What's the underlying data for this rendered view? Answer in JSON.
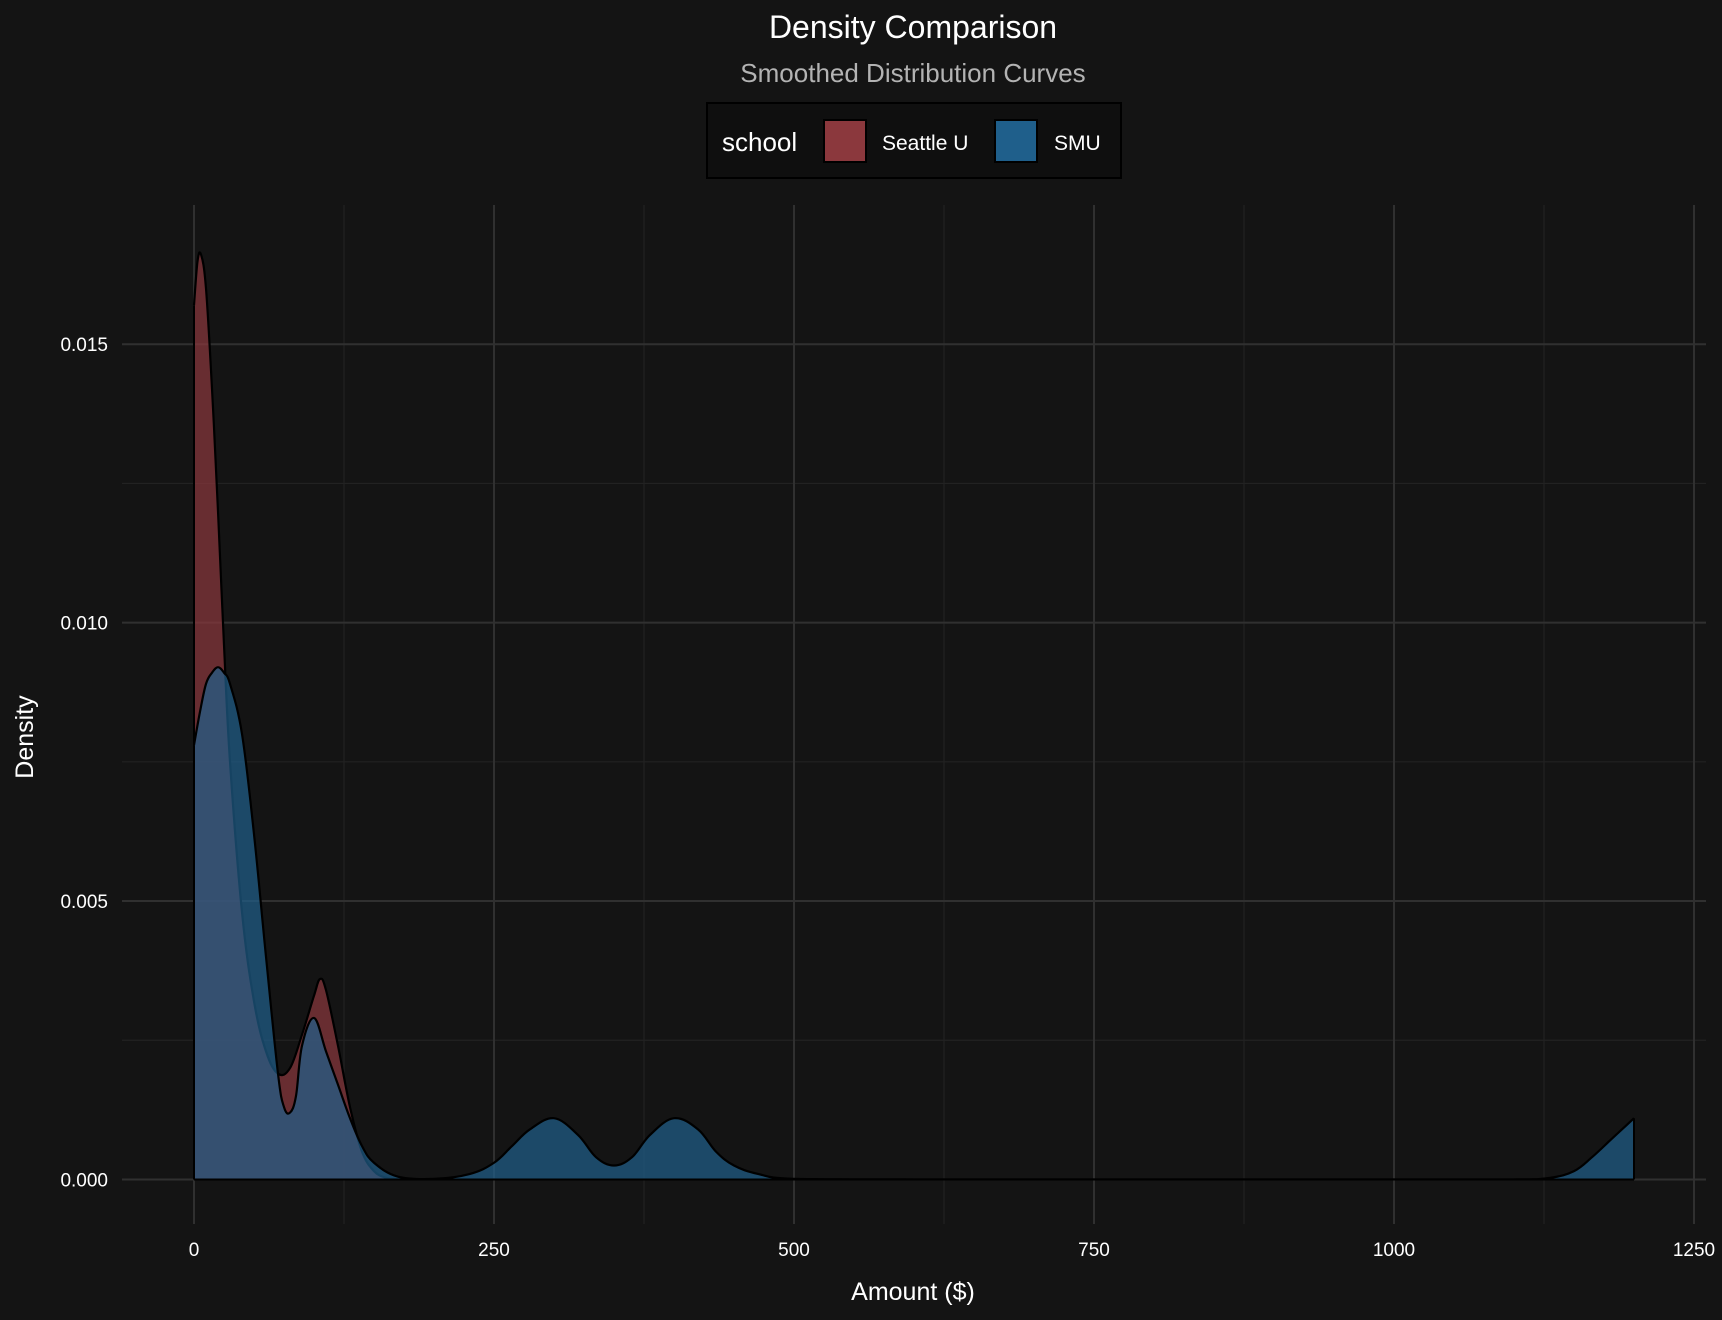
{
  "chart_data": {
    "type": "area",
    "title": "Density Comparison",
    "subtitle": "Smoothed Distribution Curves",
    "xlabel": "Amount ($)",
    "ylabel": "Density",
    "xlim": [
      -60,
      1260
    ],
    "ylim": [
      -0.0008,
      0.0175
    ],
    "x_ticks": [
      0,
      250,
      500,
      750,
      1000,
      1250
    ],
    "x_tick_labels": [
      "0",
      "250",
      "500",
      "750",
      "1000",
      "1250"
    ],
    "y_ticks": [
      0.0,
      0.005,
      0.01,
      0.015
    ],
    "y_tick_labels": [
      "0.000",
      "0.005",
      "0.010",
      "0.015"
    ],
    "grid": true,
    "legend": {
      "title": "school",
      "position": "top",
      "entries": [
        {
          "label": "Seattle U",
          "color": "#8b383d"
        },
        {
          "label": "SMU",
          "color": "#1f5f8b"
        }
      ]
    },
    "series": [
      {
        "name": "Seattle U",
        "color": "#8b383d",
        "x": [
          0,
          3,
          6,
          10,
          15,
          20,
          25,
          30,
          40,
          50,
          60,
          70,
          80,
          90,
          100,
          105,
          110,
          120,
          130,
          140,
          150,
          160,
          170,
          180,
          200,
          230,
          260,
          300,
          350,
          400,
          450,
          500,
          600,
          700,
          800,
          900,
          1000,
          1100,
          1200
        ],
        "y": [
          0.0157,
          0.0165,
          0.0166,
          0.016,
          0.0142,
          0.012,
          0.0096,
          0.0075,
          0.0048,
          0.0032,
          0.0023,
          0.0019,
          0.002,
          0.0026,
          0.0033,
          0.0036,
          0.0034,
          0.0024,
          0.0013,
          0.0005,
          0.00015,
          3e-05,
          1e-05,
          0,
          0,
          0,
          0,
          0,
          0,
          0,
          0,
          0,
          0,
          0,
          0,
          0,
          0,
          0,
          0
        ]
      },
      {
        "name": "SMU",
        "color": "#1f5f8b",
        "x": [
          0,
          5,
          10,
          15,
          20,
          25,
          30,
          40,
          50,
          60,
          70,
          75,
          80,
          85,
          90,
          100,
          110,
          120,
          130,
          140,
          150,
          170,
          200,
          230,
          250,
          265,
          280,
          300,
          320,
          335,
          350,
          365,
          380,
          400,
          420,
          435,
          450,
          470,
          500,
          600,
          700,
          800,
          900,
          1000,
          1100,
          1130,
          1150,
          1165,
          1180,
          1190,
          1200
        ],
        "y": [
          0.0078,
          0.0084,
          0.0089,
          0.0091,
          0.0092,
          0.0091,
          0.0089,
          0.008,
          0.0062,
          0.004,
          0.0019,
          0.0013,
          0.0012,
          0.0015,
          0.0024,
          0.0029,
          0.0023,
          0.0017,
          0.0011,
          0.0006,
          0.0003,
          5e-05,
          1e-05,
          0.0001,
          0.0003,
          0.0006,
          0.0009,
          0.0011,
          0.0008,
          0.0004,
          0.00025,
          0.0004,
          0.0008,
          0.0011,
          0.0009,
          0.0005,
          0.00025,
          0.0001,
          1e-05,
          0,
          0,
          0,
          0,
          0,
          0,
          3e-05,
          0.00015,
          0.0004,
          0.0007,
          0.0009,
          0.0011
        ]
      }
    ]
  }
}
